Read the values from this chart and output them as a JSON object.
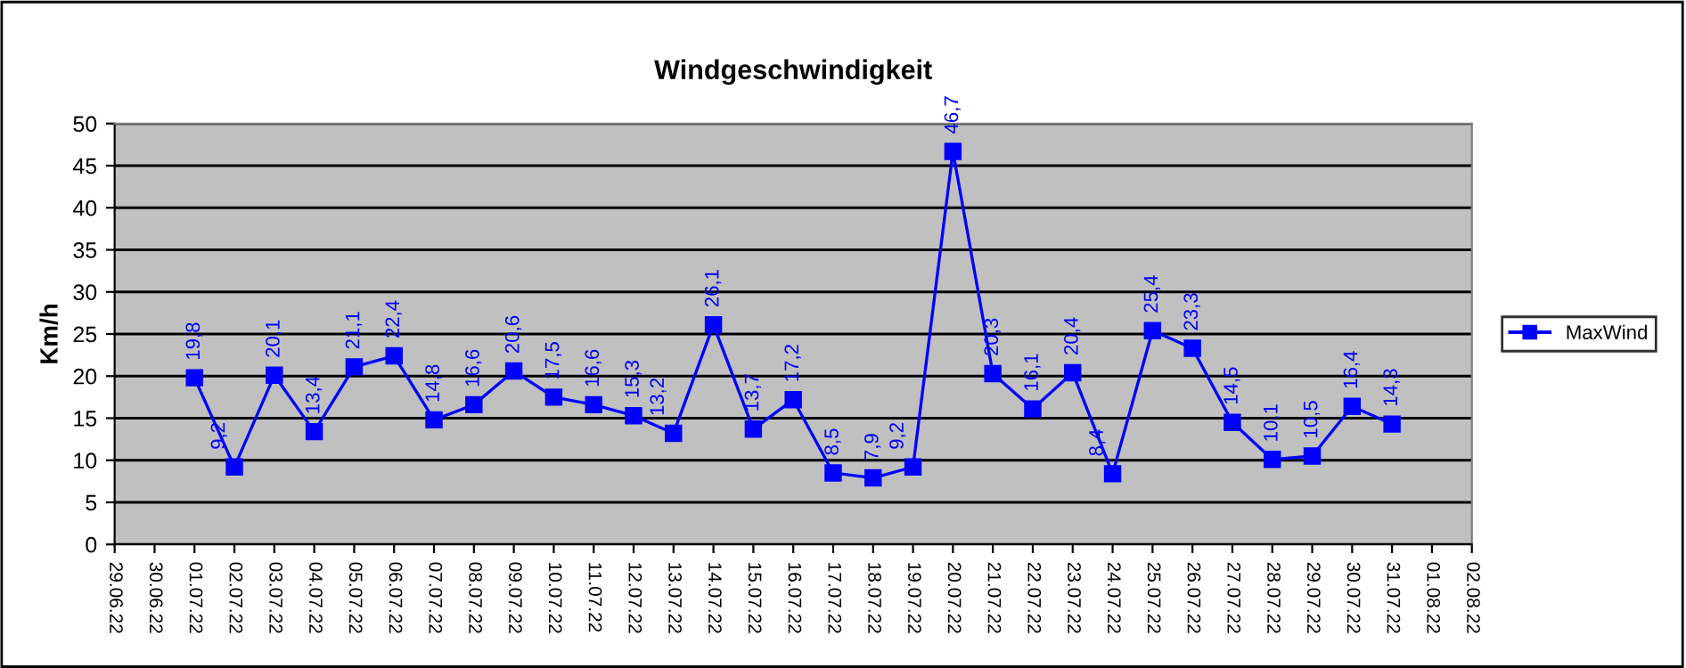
{
  "chart_data": {
    "type": "line",
    "title": "Windgeschwindigkeit",
    "ylabel": "Km/h",
    "categories": [
      "29.06.22",
      "30.06.22",
      "01.07.22",
      "02.07.22",
      "03.07.22",
      "04.07.22",
      "05.07.22",
      "06.07.22",
      "07.07.22",
      "08.07.22",
      "09.07.22",
      "10.07.22",
      "11.07.22",
      "12.07.22",
      "13.07.22",
      "14.07.22",
      "15.07.22",
      "16.07.22",
      "17.07.22",
      "18.07.22",
      "19.07.22",
      "20.07.22",
      "21.07.22",
      "22.07.22",
      "23.07.22",
      "24.07.22",
      "25.07.22",
      "26.07.22",
      "27.07.22",
      "28.07.22",
      "29.07.22",
      "30.07.22",
      "31.07.22",
      "01.08.22",
      "02.08.22"
    ],
    "series": [
      {
        "name": "MaxWind",
        "color": "#0000ff",
        "values": [
          null,
          null,
          19.8,
          9.2,
          20.1,
          13.4,
          21.1,
          22.4,
          14.8,
          16.6,
          20.6,
          17.5,
          16.6,
          15.3,
          13.2,
          26.1,
          13.7,
          17.2,
          8.5,
          7.9,
          9.2,
          46.7,
          20.3,
          16.1,
          20.4,
          8.4,
          25.4,
          23.3,
          14.5,
          10.1,
          10.5,
          16.4,
          14.3,
          null,
          null
        ],
        "value_labels": [
          null,
          null,
          "19,8",
          "9,2",
          "20,1",
          "13,4",
          "21,1",
          "22,4",
          "14,8",
          "16,6",
          "20,6",
          "17,5",
          "16,6",
          "15,3",
          "13,2",
          "26,1",
          "13,7",
          "17,2",
          "8,5",
          "7,9",
          "9,2",
          "46,7",
          "20,3",
          "16,1",
          "20,4",
          "8,4",
          "25,4",
          "23,3",
          "14,5",
          "10,1",
          "10,5",
          "16,4",
          "14,3",
          null,
          null
        ]
      }
    ],
    "ylim": [
      0,
      50
    ],
    "yticks": [
      0,
      5,
      10,
      15,
      20,
      25,
      30,
      35,
      40,
      45,
      50
    ],
    "grid": "y",
    "legend": "right",
    "marker": "square",
    "line_style": "solid"
  }
}
